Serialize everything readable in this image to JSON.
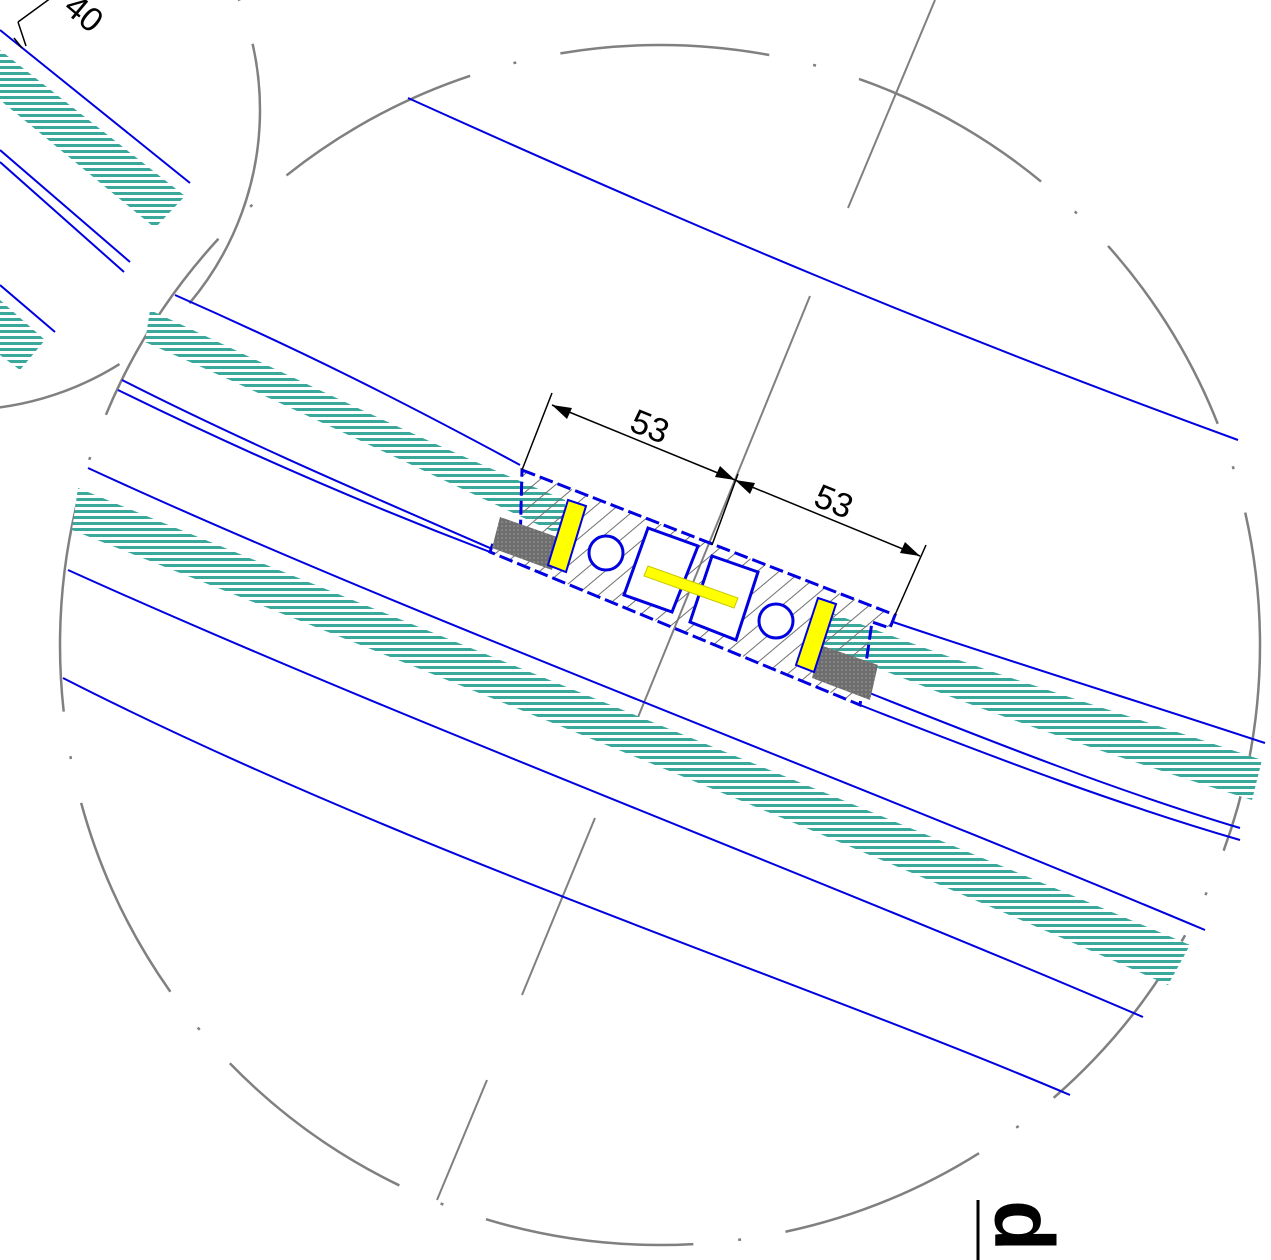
{
  "drawing": {
    "dimension_left": "53",
    "dimension_right": "53",
    "corner_dimension": "40",
    "section_tag": "d"
  },
  "colors": {
    "outline": "#0000e0",
    "glass": "#3aa89b",
    "centerline": "#808080",
    "gasket": "#ffff00",
    "sealant": "#6e6e6e",
    "dimension": "#000000"
  }
}
